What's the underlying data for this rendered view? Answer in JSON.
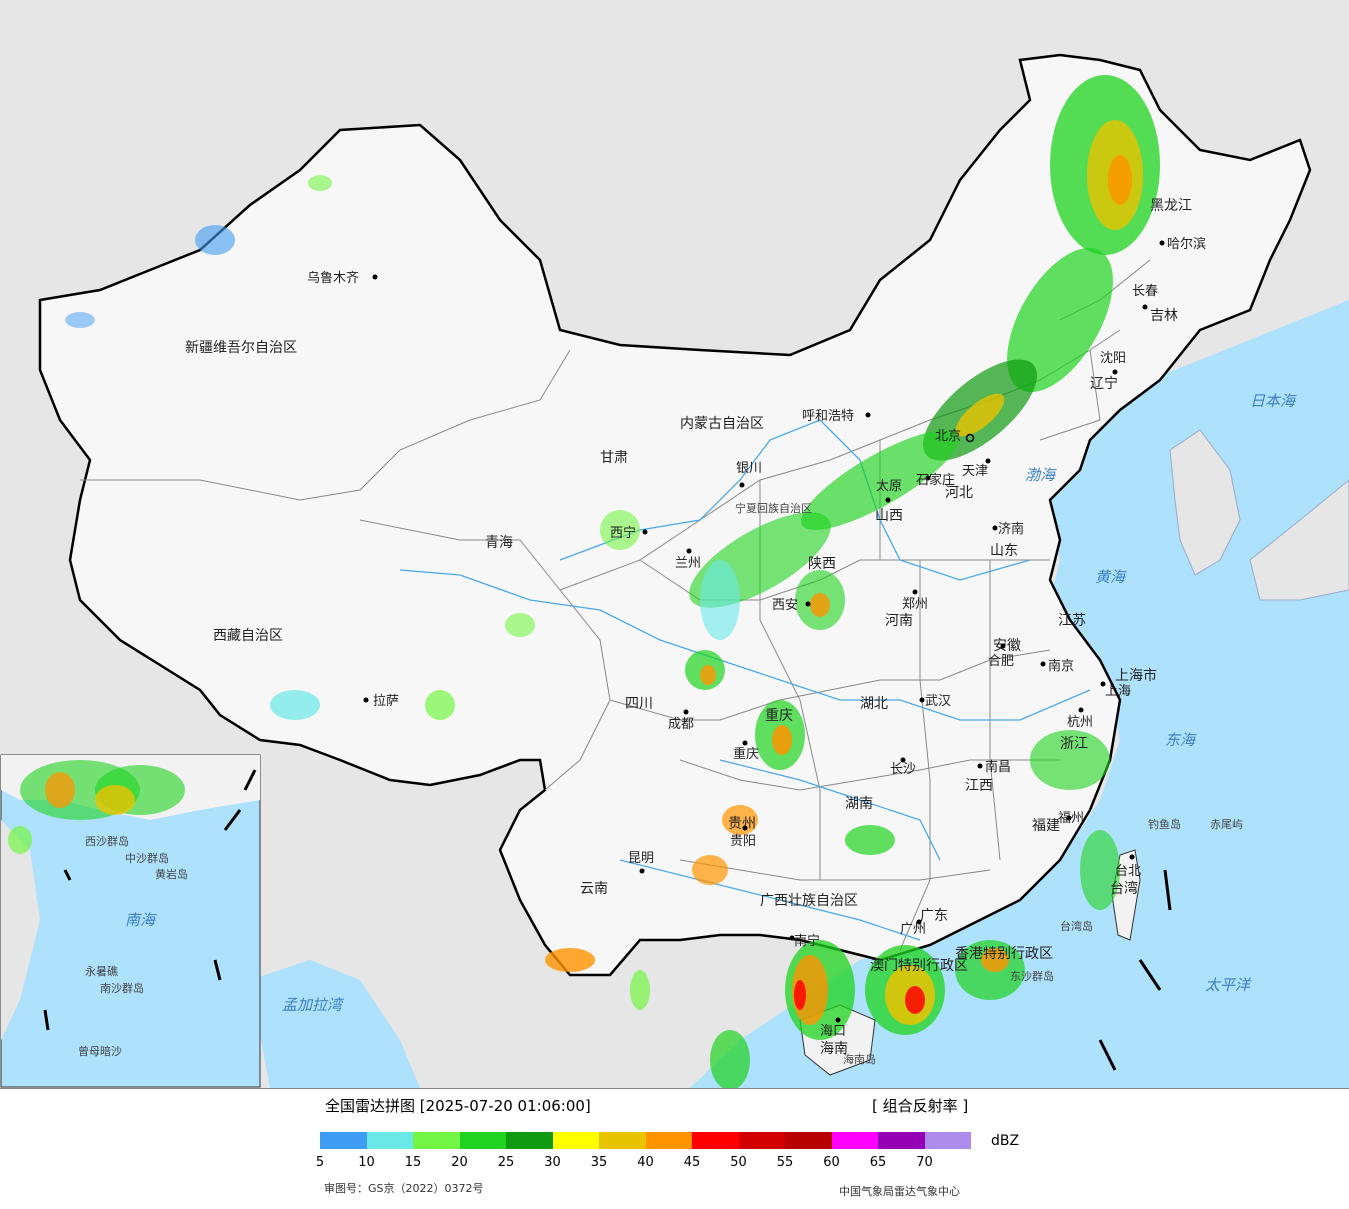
{
  "map": {
    "provinces": [
      "新疆维吾尔自治区",
      "西藏自治区",
      "青海",
      "甘肃",
      "内蒙古自治区",
      "黑龙江",
      "吉林",
      "辽宁",
      "河北",
      "山西",
      "山东",
      "河南",
      "陕西",
      "四川",
      "湖北",
      "安徽",
      "江苏",
      "上海市",
      "浙江",
      "江西",
      "湖南",
      "贵州",
      "云南",
      "广西壮族自治区",
      "广东",
      "福建",
      "海南",
      "台湾",
      "重庆",
      "宁夏回族自治区",
      "香港特别行政区",
      "澳门特别行政区"
    ],
    "cities": [
      "乌鲁木齐",
      "拉萨",
      "西宁",
      "兰州",
      "银川",
      "呼和浩特",
      "北京",
      "天津",
      "石家庄",
      "太原",
      "济南",
      "郑州",
      "西安",
      "成都",
      "重庆",
      "武汉",
      "合肥",
      "南京",
      "上海",
      "杭州",
      "南昌",
      "长沙",
      "贵阳",
      "昆明",
      "南宁",
      "广州",
      "福州",
      "台北",
      "海口",
      "哈尔滨",
      "长春",
      "沈阳"
    ],
    "seas": [
      "渤海",
      "黄海",
      "东海",
      "日本海",
      "太平洋",
      "南海",
      "孟加拉湾"
    ],
    "islands": [
      "钓鱼岛",
      "赤尾屿",
      "海南岛",
      "台湾岛",
      "东沙群岛",
      "西沙群岛",
      "中沙群岛",
      "黄岩岛",
      "永暑礁",
      "南沙群岛",
      "曾母暗沙"
    ]
  },
  "legend": {
    "title": "全国雷达拼图 [2025-07-20 01:06:00]",
    "product": "[ 组合反射率 ]",
    "unit": "dBZ",
    "ticks": [
      "5",
      "10",
      "15",
      "20",
      "25",
      "30",
      "35",
      "40",
      "45",
      "50",
      "55",
      "60",
      "65",
      "70"
    ],
    "colors": [
      "#3f9cf4",
      "#6ae8e8",
      "#73f545",
      "#1fd31f",
      "#0f9a0f",
      "#ffff00",
      "#e8c300",
      "#ff9400",
      "#ff0000",
      "#d30000",
      "#b70000",
      "#ff00ff",
      "#9400b4",
      "#ad8ceb"
    ],
    "review_no": "审图号：GS京（2022）0372号",
    "organization": "中国气象局雷达气象中心"
  }
}
